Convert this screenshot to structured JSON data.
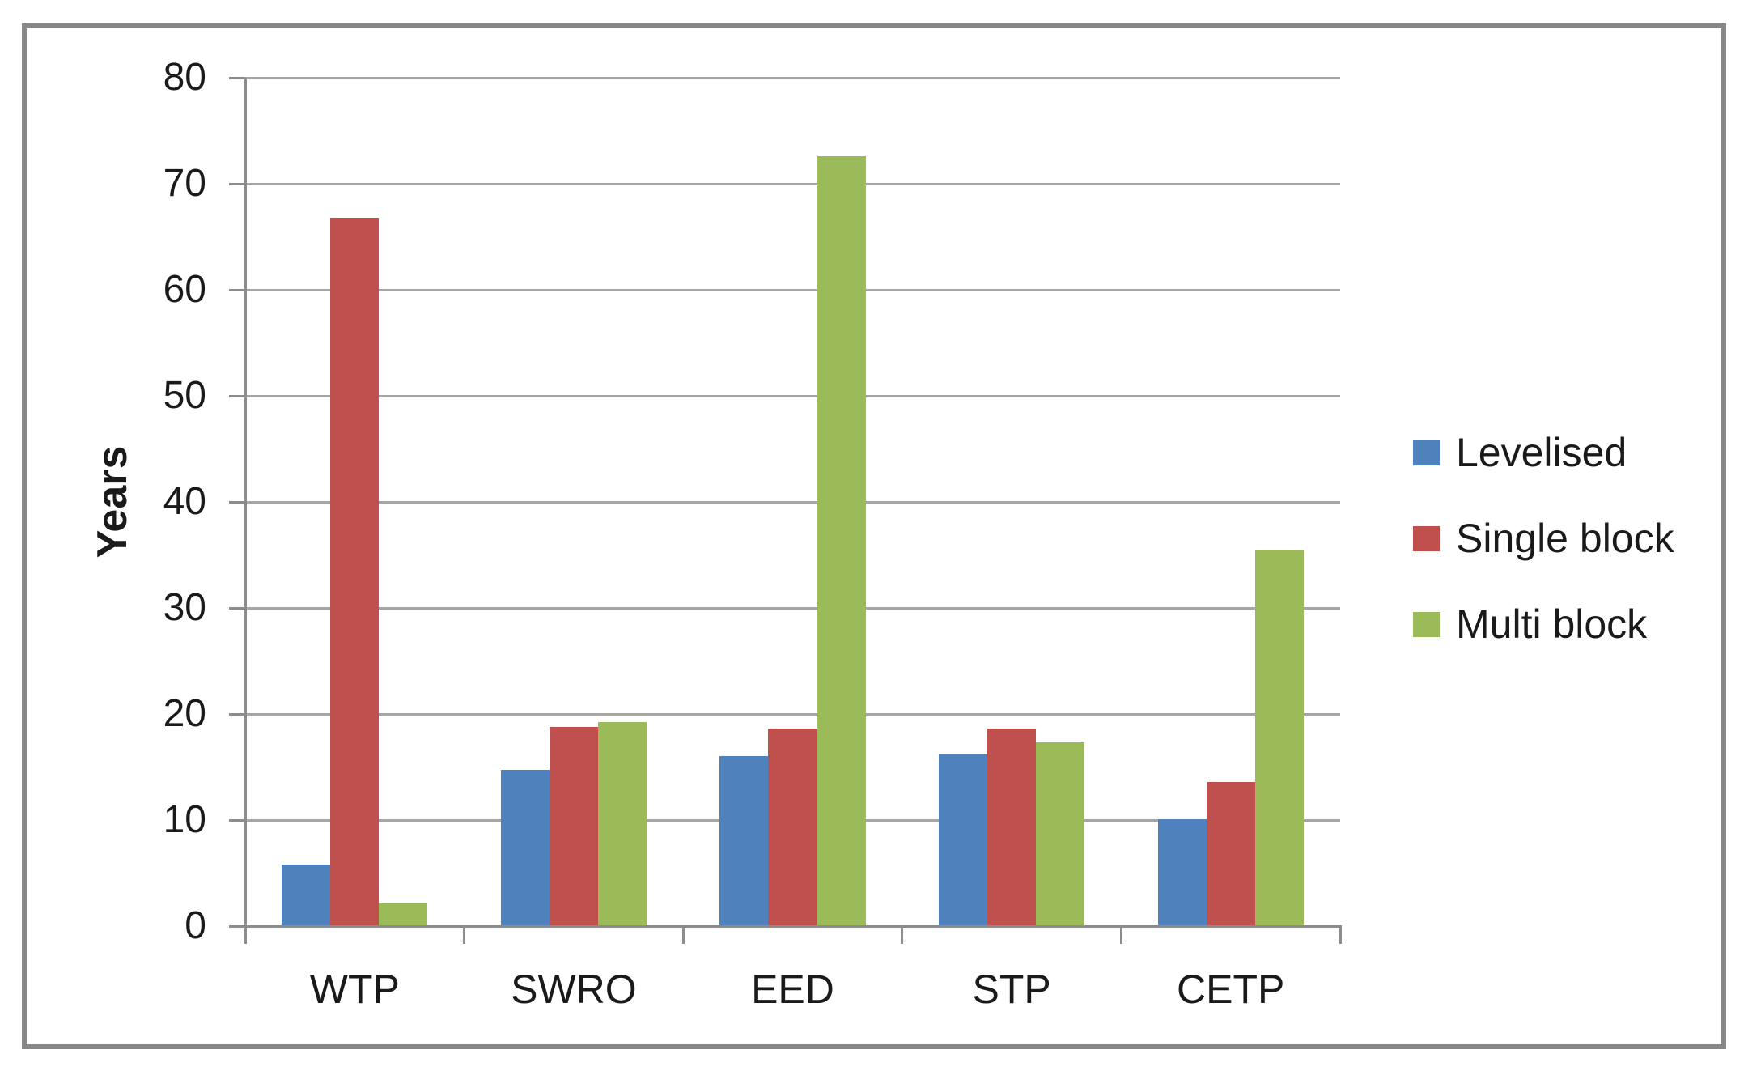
{
  "chart_data": {
    "type": "bar",
    "title": "",
    "xlabel": "",
    "ylabel": "Years",
    "ylim": [
      0,
      80
    ],
    "ytick_step": 10,
    "yticks": [
      0,
      10,
      20,
      30,
      40,
      50,
      60,
      70,
      80
    ],
    "grid": true,
    "legend_position": "right",
    "categories": [
      "WTP",
      "SWRO",
      "EED",
      "STP",
      "CETP"
    ],
    "series": [
      {
        "name": "Levelised",
        "color": "#4F81BD",
        "values": [
          5.8,
          14.7,
          16.0,
          16.2,
          10.1
        ]
      },
      {
        "name": "Single block",
        "color": "#C0504D",
        "values": [
          66.8,
          18.8,
          18.6,
          18.6,
          13.6
        ]
      },
      {
        "name": "Multi block",
        "color": "#9BBB59",
        "values": [
          2.2,
          19.2,
          72.6,
          17.3,
          35.4
        ]
      }
    ]
  },
  "colors": {
    "frame": "#878787",
    "axis": "#8C8C8C",
    "gridline": "#A6A6A6",
    "text": "#1A1A1A",
    "background": "#FFFFFF"
  }
}
